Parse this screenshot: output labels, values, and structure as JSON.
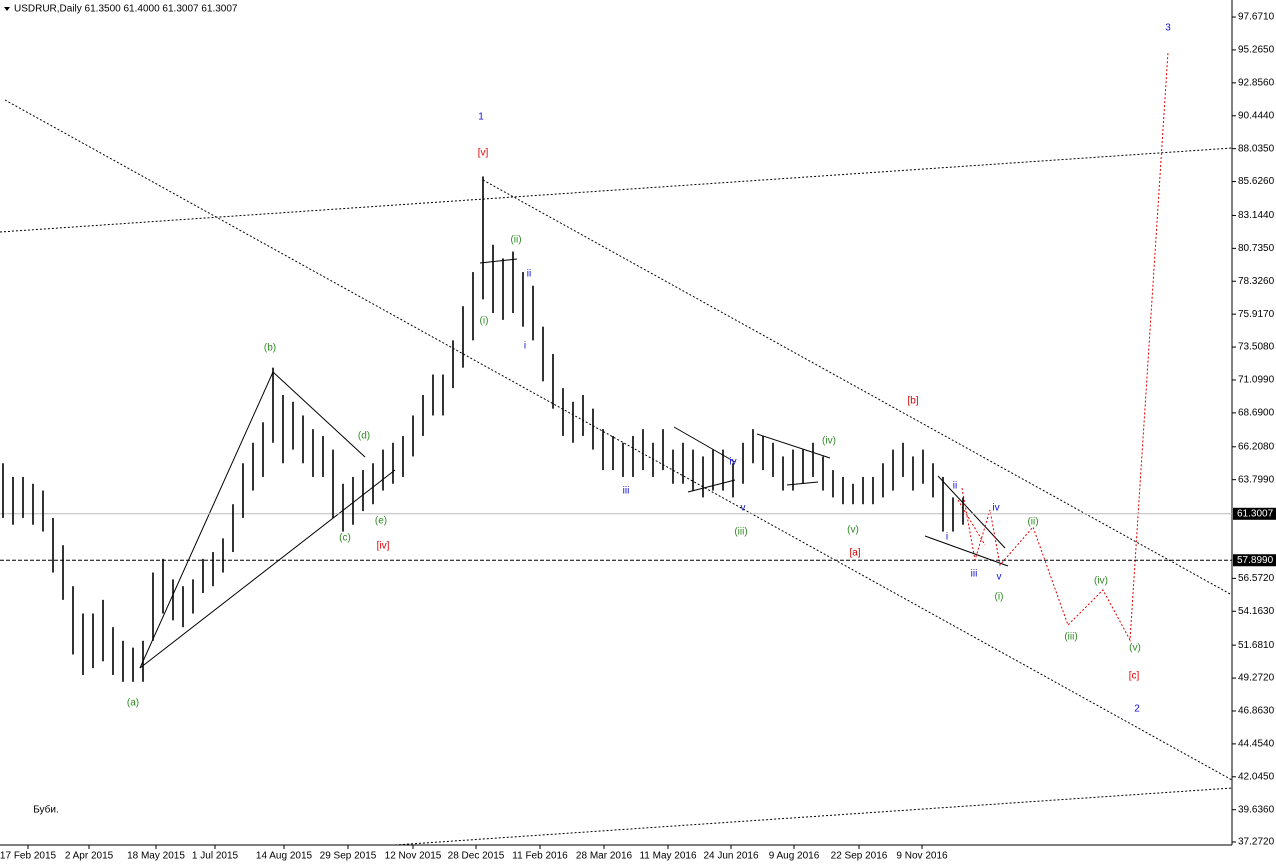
{
  "chart_data": {
    "type": "hilo",
    "title": "USDRUR,Daily  61.3500 61.4000 61.3007 61.3007",
    "color": "#000000",
    "high": [
      65,
      64,
      64,
      63.5,
      63,
      61,
      59,
      56,
      54,
      54,
      55,
      53,
      52,
      51.5,
      52,
      57,
      58,
      56.5,
      56,
      56.5,
      58,
      58.5,
      59.5,
      62,
      65,
      66.5,
      68,
      72,
      70,
      69.5,
      68.5,
      67.5,
      67,
      66,
      63.5,
      64,
      64.5,
      65,
      66,
      66.5,
      67,
      68.5,
      70,
      71.5,
      71.5,
      74,
      76.5,
      79,
      86,
      81,
      80,
      80.5,
      79,
      78,
      75,
      73,
      70.5,
      69.5,
      70,
      69,
      67.5,
      67,
      66.5,
      67,
      67.5,
      66.5,
      67.5,
      66,
      66.5,
      66,
      65.5,
      66,
      66,
      65,
      66.5,
      67.5,
      67,
      66.5,
      65.5,
      66,
      66,
      66.5,
      65.5,
      64.5,
      64,
      63.5,
      64,
      64,
      65,
      66,
      66.5,
      65.5,
      66,
      65,
      64,
      62.5,
      62.5
    ],
    "low": [
      61,
      60.5,
      61,
      60.5,
      60,
      57,
      55,
      51,
      49.5,
      50,
      50.5,
      49.5,
      49,
      49,
      49,
      52,
      54,
      53.5,
      53,
      54,
      55.5,
      56,
      57,
      58.5,
      61,
      63,
      64,
      66.5,
      65,
      66,
      65,
      64,
      64,
      61,
      60,
      60.5,
      61.5,
      62,
      63,
      63.5,
      64,
      65.5,
      67,
      68.5,
      68.5,
      70.5,
      72,
      74,
      77,
      76,
      75.5,
      76,
      75,
      74,
      71,
      69,
      67,
      66.5,
      67,
      66,
      64.5,
      64.5,
      64,
      64,
      64.5,
      64,
      64.5,
      63.5,
      63.5,
      63,
      62.5,
      63,
      63,
      62.5,
      63.5,
      65,
      64.5,
      64,
      63,
      63,
      63.5,
      64,
      63,
      62.5,
      62,
      62,
      62,
      62,
      62.5,
      63,
      64,
      63,
      63.5,
      62.5,
      60,
      60,
      60.5
    ],
    "xlim": [
      -0.3,
      122.9
    ],
    "xticks": [
      {
        "value": 2.5,
        "label": "17 Feb 2015"
      },
      {
        "value": 8.6,
        "label": "2 Apr 2015"
      },
      {
        "value": 15.3,
        "label": "18 May 2015"
      },
      {
        "value": 21.2,
        "label": "1 Jul 2015"
      },
      {
        "value": 28.1,
        "label": "14 Aug 2015"
      },
      {
        "value": 34.5,
        "label": "29 Sep 2015"
      },
      {
        "value": 41.0,
        "label": "12 Nov 2015"
      },
      {
        "value": 47.3,
        "label": "28 Dec 2015"
      },
      {
        "value": 53.7,
        "label": "11 Feb 2016"
      },
      {
        "value": 60.1,
        "label": "28 Mar 2016"
      },
      {
        "value": 66.5,
        "label": "11 May 2016"
      },
      {
        "value": 72.8,
        "label": "24 Jun 2016"
      },
      {
        "value": 79.1,
        "label": "9 Aug 2016"
      },
      {
        "value": 85.6,
        "label": "22 Sep 2016"
      },
      {
        "value": 91.9,
        "label": "9 Nov 2016"
      }
    ],
    "ylim": [
      37.05,
      98.92
    ],
    "yticks": [
      {
        "value": 97.671,
        "label": "97.6710"
      },
      {
        "value": 95.265,
        "label": "95.2650"
      },
      {
        "value": 92.856,
        "label": "92.8560"
      },
      {
        "value": 90.444,
        "label": "90.4440"
      },
      {
        "value": 88.035,
        "label": "88.0350"
      },
      {
        "value": 85.626,
        "label": "85.6260"
      },
      {
        "value": 83.144,
        "label": "83.1440"
      },
      {
        "value": 80.735,
        "label": "80.7350"
      },
      {
        "value": 78.326,
        "label": "78.3260"
      },
      {
        "value": 75.917,
        "label": "75.9170"
      },
      {
        "value": 73.508,
        "label": "73.5080"
      },
      {
        "value": 71.099,
        "label": "71.0990"
      },
      {
        "value": 68.69,
        "label": "68.6900"
      },
      {
        "value": 66.208,
        "label": "66.2080"
      },
      {
        "value": 63.799,
        "label": "63.7990"
      },
      {
        "value": 56.572,
        "label": "56.5720"
      },
      {
        "value": 54.163,
        "label": "54.1630"
      },
      {
        "value": 51.681,
        "label": "51.6810"
      },
      {
        "value": 49.272,
        "label": "49.2720"
      },
      {
        "value": 46.863,
        "label": "46.8630"
      },
      {
        "value": 44.454,
        "label": "44.4540"
      },
      {
        "value": 42.045,
        "label": "42.0450"
      },
      {
        "value": 39.636,
        "label": "39.6360"
      },
      {
        "value": 37.272,
        "label": "37.2720"
      }
    ],
    "price_line": 61.3007,
    "level": {
      "value": 57.899,
      "label": "57.8990"
    },
    "annotations": [
      {
        "text": "1",
        "color": "#1010d0"
      },
      {
        "text": "[v]",
        "color": "#e00000"
      },
      {
        "text": "(ii)",
        "color": "#2e8b22"
      },
      {
        "text": "ii",
        "color": "#1010d0"
      },
      {
        "text": "(i)",
        "color": "#2e8b22"
      },
      {
        "text": "i",
        "color": "#1010d0"
      },
      {
        "text": "(b)",
        "color": "#2e8b22"
      },
      {
        "text": "(d)",
        "color": "#2e8b22"
      },
      {
        "text": "(c)",
        "color": "#2e8b22"
      },
      {
        "text": "(e)",
        "color": "#2e8b22"
      },
      {
        "text": "[iv]",
        "color": "#e00000"
      },
      {
        "text": "(a)",
        "color": "#2e8b22"
      },
      {
        "text": "iii",
        "color": "#1010d0"
      },
      {
        "text": "iv",
        "color": "#1010d0"
      },
      {
        "text": "v",
        "color": "#1010d0"
      },
      {
        "text": "(iii)",
        "color": "#2e8b22"
      },
      {
        "text": "(iv)",
        "color": "#2e8b22"
      },
      {
        "text": "(v)",
        "color": "#2e8b22"
      },
      {
        "text": "[a]",
        "color": "#e00000"
      },
      {
        "text": "[b]",
        "color": "#e00000"
      },
      {
        "text": "ii",
        "color": "#1010d0"
      },
      {
        "text": "iv",
        "color": "#1010d0"
      },
      {
        "text": "i",
        "color": "#1010d0"
      },
      {
        "text": "iii",
        "color": "#1010d0"
      },
      {
        "text": "v",
        "color": "#1010d0"
      },
      {
        "text": "(i)",
        "color": "#2e8b22"
      },
      {
        "text": "(ii)",
        "color": "#2e8b22"
      },
      {
        "text": "(iii)",
        "color": "#2e8b22"
      },
      {
        "text": "(iv)",
        "color": "#2e8b22"
      },
      {
        "text": "(v)",
        "color": "#2e8b22"
      },
      {
        "text": "[c]",
        "color": "#e00000"
      },
      {
        "text": "2",
        "color": "#1010d0"
      },
      {
        "text": "3",
        "color": "#1010d0"
      },
      {
        "text": "Буби.",
        "color": "#000000"
      }
    ]
  }
}
